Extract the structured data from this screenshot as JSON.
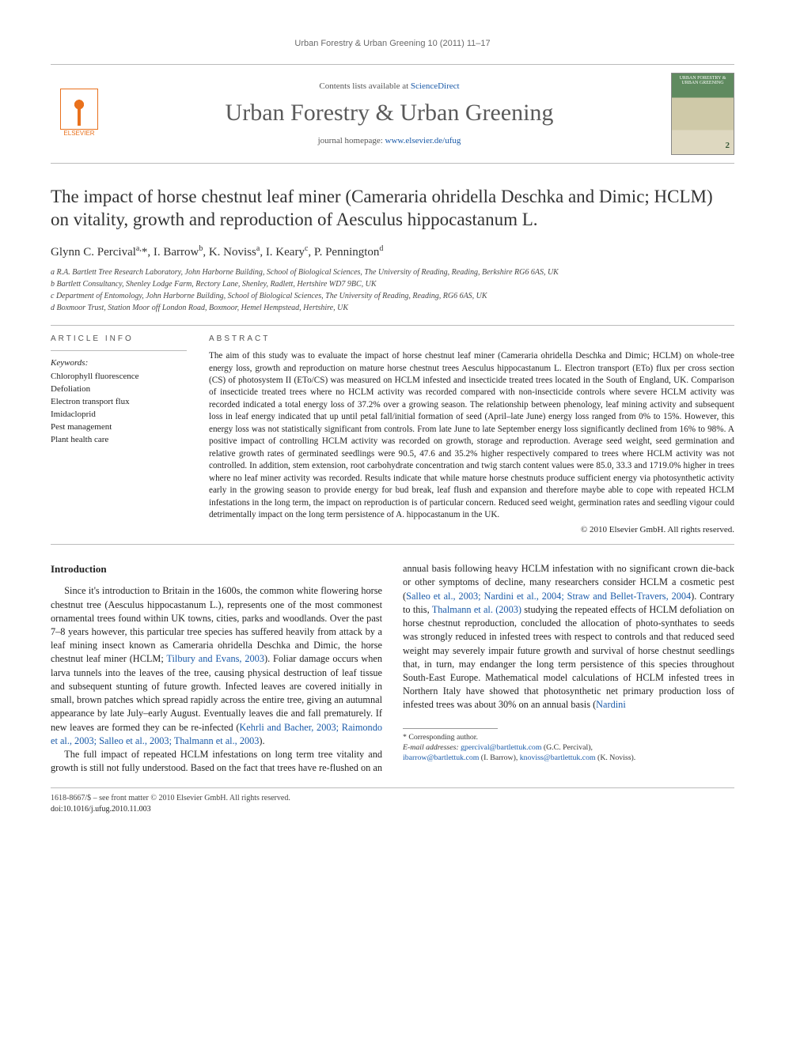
{
  "running_head": "Urban Forestry & Urban Greening 10 (2011) 11–17",
  "masthead": {
    "contents_prefix": "Contents lists available at ",
    "contents_link": "ScienceDirect",
    "journal": "Urban Forestry & Urban Greening",
    "homepage_prefix": "journal homepage: ",
    "homepage_link": "www.elsevier.de/ufug",
    "elsevier_label": "ELSEVIER",
    "cover_label": "URBAN FORESTRY & URBAN GREENING",
    "cover_issue": "2"
  },
  "title": "The impact of horse chestnut leaf miner (Cameraria ohridella Deschka and Dimic; HCLM) on vitality, growth and reproduction of Aesculus hippocastanum L.",
  "authors_html": "Glynn C. Percival<sup>a,</sup>*, I. Barrow<sup>b</sup>, K. Noviss<sup>a</sup>, I. Keary<sup>c</sup>, P. Pennington<sup>d</sup>",
  "affiliations": [
    "a R.A. Bartlett Tree Research Laboratory, John Harborne Building, School of Biological Sciences, The University of Reading, Reading, Berkshire RG6 6AS, UK",
    "b Bartlett Consultancy, Shenley Lodge Farm, Rectory Lane, Shenley, Radlett, Hertshire WD7 9BC, UK",
    "c Department of Entomology, John Harborne Building, School of Biological Sciences, The University of Reading, Reading, RG6 6AS, UK",
    "d Boxmoor Trust, Station Moor off London Road, Boxmoor, Hemel Hempstead, Hertshire, UK"
  ],
  "info": {
    "head": "ARTICLE INFO",
    "keywords_label": "Keywords:",
    "keywords": [
      "Chlorophyll fluorescence",
      "Defoliation",
      "Electron transport flux",
      "Imidacloprid",
      "Pest management",
      "Plant health care"
    ]
  },
  "abstract": {
    "head": "ABSTRACT",
    "text": "The aim of this study was to evaluate the impact of horse chestnut leaf miner (Cameraria ohridella Deschka and Dimic; HCLM) on whole-tree energy loss, growth and reproduction on mature horse chestnut trees Aesculus hippocastanum L. Electron transport (ETo) flux per cross section (CS) of photosystem II (ETo/CS) was measured on HCLM infested and insecticide treated trees located in the South of England, UK. Comparison of insecticide treated trees where no HCLM activity was recorded compared with non-insecticide controls where severe HCLM activity was recorded indicated a total energy loss of 37.2% over a growing season. The relationship between phenology, leaf mining activity and subsequent loss in leaf energy indicated that up until petal fall/initial formation of seed (April–late June) energy loss ranged from 0% to 15%. However, this energy loss was not statistically significant from controls. From late June to late September energy loss significantly declined from 16% to 98%. A positive impact of controlling HCLM activity was recorded on growth, storage and reproduction. Average seed weight, seed germination and relative growth rates of germinated seedlings were 90.5, 47.6 and 35.2% higher respectively compared to trees where HCLM activity was not controlled. In addition, stem extension, root carbohydrate concentration and twig starch content values were 85.0, 33.3 and 1719.0% higher in trees where no leaf miner activity was recorded. Results indicate that while mature horse chestnuts produce sufficient energy via photosynthetic activity early in the growing season to provide energy for bud break, leaf flush and expansion and therefore maybe able to cope with repeated HCLM infestations in the long term, the impact on reproduction is of particular concern. Reduced seed weight, germination rates and seedling vigour could detrimentally impact on the long term persistence of A. hippocastanum in the UK.",
    "copyright": "© 2010 Elsevier GmbH. All rights reserved."
  },
  "body": {
    "intro_head": "Introduction",
    "p1a": "Since it's introduction to Britain in the 1600s, the common white flowering horse chestnut tree (Aesculus hippocastanum L.), represents one of the most commonest ornamental trees found within UK towns, cities, parks and woodlands. Over the past 7–8 years however, this particular tree species has suffered heavily from attack by a leaf mining insect known as Cameraria ohridella Deschka and Dimic, the horse chestnut leaf miner (HCLM; ",
    "p1_cite1": "Tilbury and Evans, 2003",
    "p1b": "). Foliar damage occurs when larva tunnels into the leaves of the tree, causing physical destruction of leaf tissue and subsequent stunting of future growth. Infected leaves are covered initially in small, brown patches which spread rapidly across the entire tree, giving an autumnal appearance by late July–early August. Eventually leaves die and fall prematurely. If new leaves are formed they can be re-infected (",
    "p1_cite2": "Kehrli and Bacher, 2003; Raimondo et al., 2003; Salleo et al., 2003; Thalmann et al., 2003",
    "p1c": ").",
    "p2a": "The full impact of repeated HCLM infestations on long term tree vitality and growth is still not fully understood. Based on the fact that trees have re-flushed on an annual basis following heavy HCLM infestation with no significant crown die-back or other symptoms of decline, many researchers consider HCLM a cosmetic pest (",
    "p2_cite1": "Salleo et al., 2003; Nardini et al., 2004; Straw and Bellet-Travers, 2004",
    "p2b": "). Contrary to this, ",
    "p2_cite2": "Thalmann et al. (2003)",
    "p2c": " studying the repeated effects of HCLM defoliation on horse chestnut reproduction, concluded the allocation of photo-synthates to seeds was strongly reduced in infested trees with respect to controls and that reduced seed weight may severely impair future growth and survival of horse chestnut seedlings that, in turn, may endanger the long term persistence of this species throughout South-East Europe. Mathematical model calculations of HCLM infested trees in Northern Italy have showed that photosynthetic net primary production loss of infested trees was about 30% on an annual basis (",
    "p2_cite3": "Nardini"
  },
  "footnotes": {
    "corr": "* Corresponding author.",
    "email_label": "E-mail addresses: ",
    "emails": [
      {
        "addr": "gpercival@bartlettuk.com",
        "who": " (G.C. Percival),"
      },
      {
        "addr": "ibarrow@bartlettuk.com",
        "who": " (I. Barrow), "
      },
      {
        "addr": "knoviss@bartlettuk.com",
        "who": " (K. Noviss)."
      }
    ]
  },
  "footer": {
    "issn_line": "1618-8667/$ – see front matter © 2010 Elsevier GmbH. All rights reserved.",
    "doi": "doi:10.1016/j.ufug.2010.11.003"
  },
  "colors": {
    "link": "#1a5aa8",
    "elsevier": "#e9711c",
    "rule": "#bbbbbb",
    "text": "#222222",
    "muted": "#6a6a6a"
  },
  "typography": {
    "title_pt": 23,
    "journal_pt": 30,
    "body_pt": 12.3,
    "abstract_pt": 11.2,
    "affil_pt": 10,
    "footnote_pt": 9.8
  }
}
